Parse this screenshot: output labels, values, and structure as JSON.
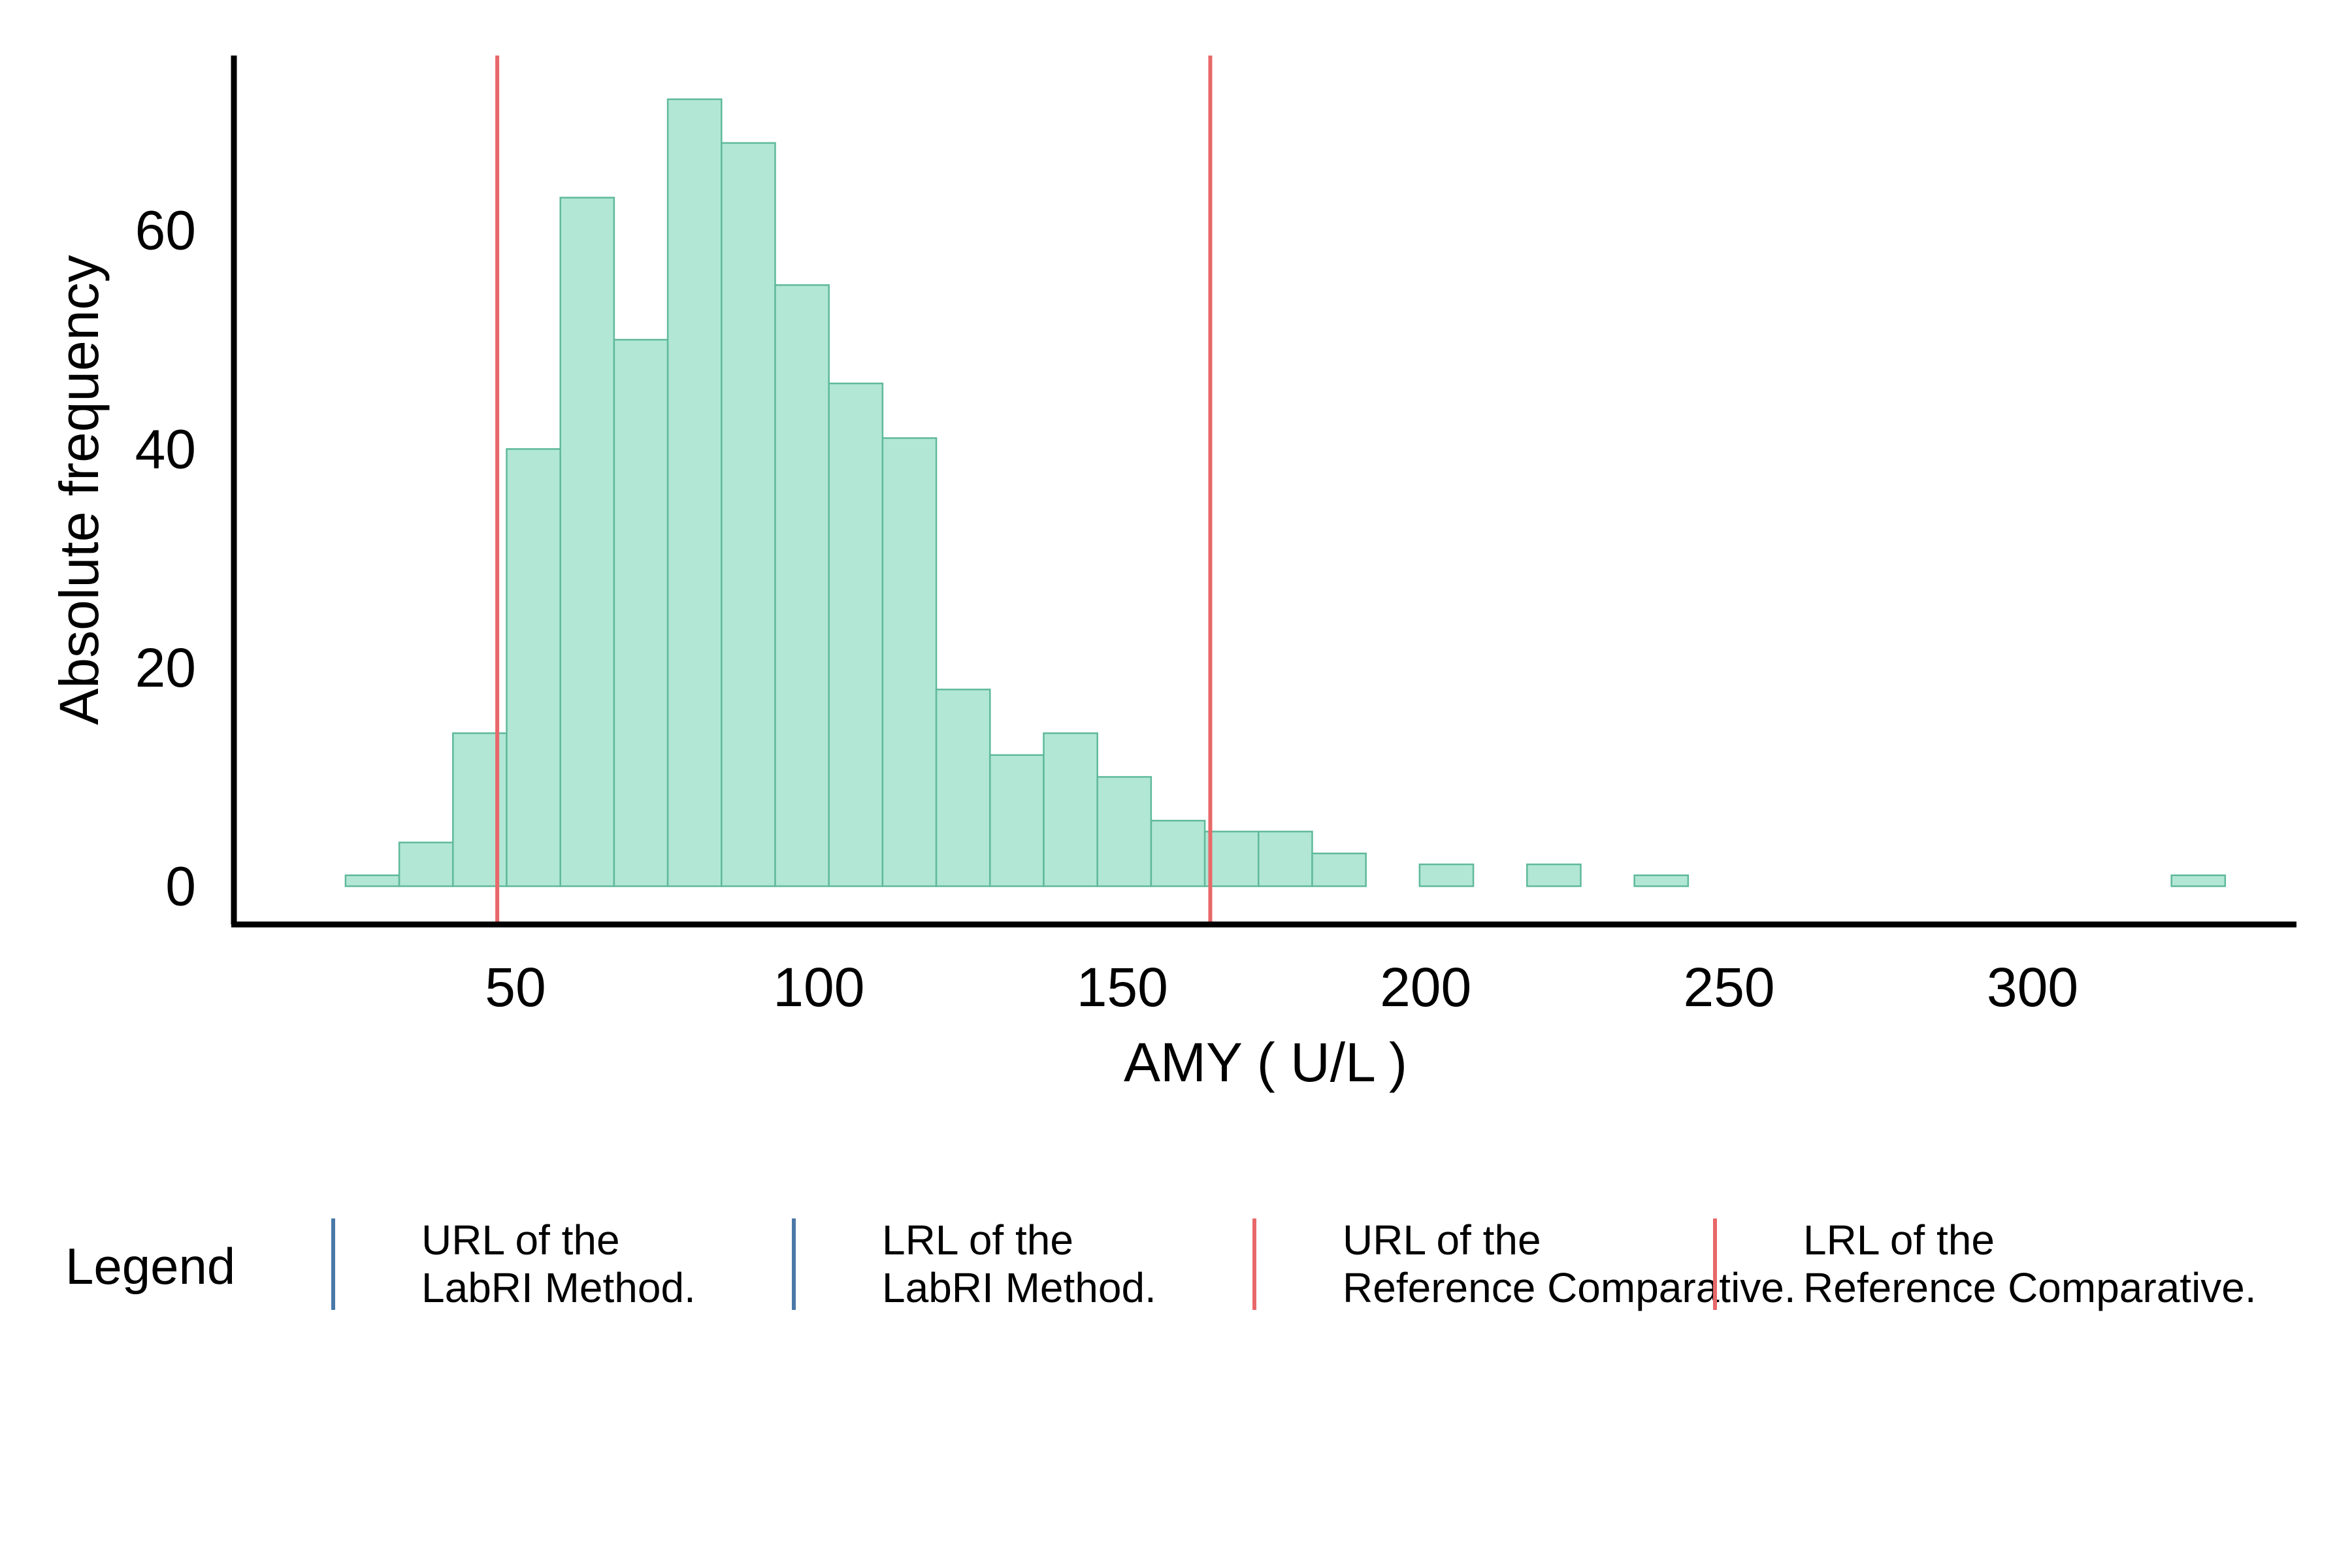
{
  "chart_data": {
    "type": "bar",
    "subtype": "histogram",
    "xlabel": "AMY ( U/L )",
    "ylabel": "Absolute frequency",
    "xlim": [
      3.6,
      343.5
    ],
    "ylim": [
      -3.5,
      76
    ],
    "x_ticks": [
      50,
      100,
      150,
      200,
      250,
      300
    ],
    "y_ticks": [
      0,
      20,
      40,
      60
    ],
    "bin_width": 8.85,
    "bin_start": 22.0,
    "counts": [
      1,
      4,
      14,
      40,
      63,
      50,
      72,
      68,
      55,
      46,
      41,
      18,
      12,
      14,
      10,
      6,
      5,
      5,
      3,
      0,
      2,
      0,
      2,
      0,
      1,
      0,
      0,
      0,
      0,
      0,
      0,
      0,
      0,
      0,
      1
    ],
    "vertical_lines": [
      {
        "x": 47.0,
        "color": "#e8686a",
        "series": "URL of the Reference Comparative."
      },
      {
        "x": 164.5,
        "color": "#e8686a",
        "series": "LRL of the Reference Comparative."
      }
    ],
    "legend": {
      "title": "Legend",
      "placement": "bottom",
      "items": [
        {
          "line1": "URL of the",
          "line2": "LabRI Method.",
          "color": "#4a78a8"
        },
        {
          "line1": "LRL of the",
          "line2": "LabRI Method.",
          "color": "#4a78a8"
        },
        {
          "line1": "URL of the",
          "line2": "Reference Comparative.",
          "color": "#e8686a"
        },
        {
          "line1": "LRL of the",
          "line2": "Reference Comparative.",
          "color": "#e8686a"
        }
      ]
    },
    "colors": {
      "bar_fill": "#b2e7d5",
      "bar_stroke": "#5fb99a",
      "axis": "#000000"
    }
  }
}
